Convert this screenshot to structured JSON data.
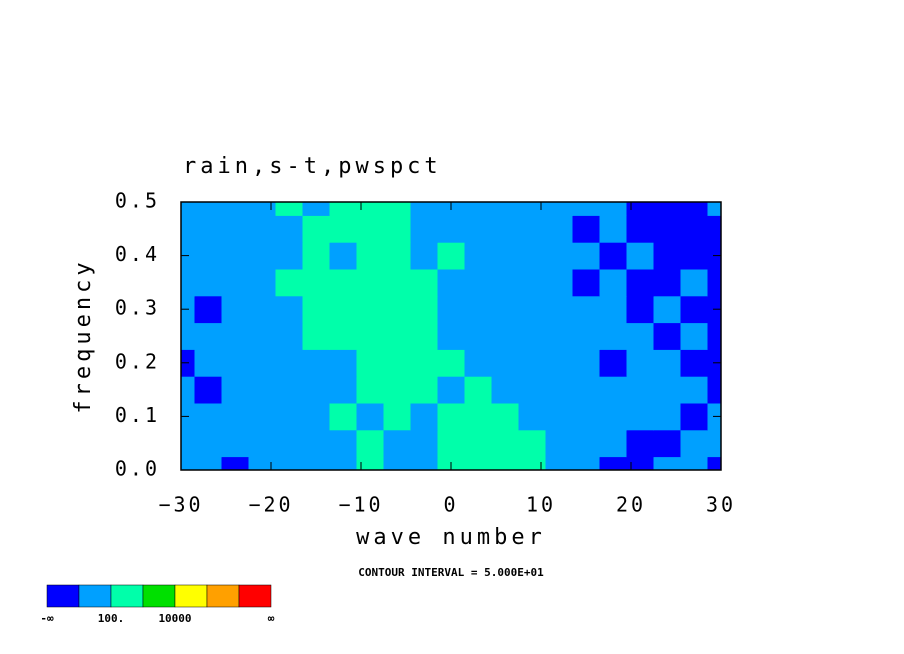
{
  "chart_data": {
    "type": "contour",
    "title": "rain,s-t,pwspct",
    "x_label": "wave number",
    "y_label": "frequency",
    "note": "CONTOUR INTERVAL = 5.000E+01",
    "xlim": [
      -30,
      30
    ],
    "ylim": [
      0,
      0.5
    ],
    "xticks": [
      {
        "value": -30,
        "label": "−30"
      },
      {
        "value": -20,
        "label": "−20"
      },
      {
        "value": -10,
        "label": "−10"
      },
      0,
      10,
      20,
      30
    ],
    "yticks": [
      {
        "value": 0,
        "label": "0.0"
      },
      0.1,
      0.2,
      0.3,
      0.4,
      0.5
    ],
    "x": [
      -30,
      -27,
      -24,
      -21,
      -18,
      -15,
      -12,
      -9,
      -6,
      -3,
      0,
      3,
      6,
      9,
      12,
      15,
      18,
      21,
      24,
      27,
      30
    ],
    "y": [
      0,
      0.05,
      0.1,
      0.15,
      0.2,
      0.25,
      0.3,
      0.35,
      0.4,
      0.45,
      0.5
    ],
    "z": [
      [
        70,
        70,
        30,
        70,
        70,
        70,
        70,
        200,
        70,
        70,
        200,
        200,
        200,
        200,
        70,
        70,
        30,
        30,
        70,
        70,
        30
      ],
      [
        70,
        70,
        70,
        70,
        70,
        70,
        70,
        200,
        70,
        70,
        200,
        200,
        200,
        200,
        70,
        70,
        70,
        30,
        30,
        70,
        70
      ],
      [
        70,
        70,
        70,
        70,
        70,
        70,
        200,
        70,
        200,
        70,
        200,
        200,
        200,
        70,
        70,
        70,
        70,
        70,
        70,
        30,
        70
      ],
      [
        70,
        30,
        70,
        70,
        70,
        70,
        70,
        200,
        200,
        200,
        70,
        200,
        70,
        70,
        70,
        70,
        70,
        70,
        70,
        70,
        30
      ],
      [
        30,
        70,
        70,
        70,
        70,
        70,
        70,
        200,
        200,
        200,
        200,
        70,
        70,
        70,
        70,
        70,
        30,
        70,
        70,
        30,
        30
      ],
      [
        70,
        70,
        70,
        70,
        70,
        200,
        200,
        200,
        200,
        200,
        70,
        70,
        70,
        70,
        70,
        70,
        70,
        70,
        30,
        70,
        30
      ],
      [
        70,
        30,
        70,
        70,
        70,
        200,
        200,
        200,
        200,
        200,
        70,
        70,
        70,
        70,
        70,
        70,
        70,
        30,
        70,
        30,
        30
      ],
      [
        70,
        70,
        70,
        70,
        200,
        200,
        200,
        200,
        200,
        200,
        70,
        70,
        70,
        70,
        70,
        30,
        70,
        30,
        30,
        70,
        30
      ],
      [
        70,
        70,
        70,
        70,
        70,
        200,
        70,
        200,
        200,
        70,
        200,
        70,
        70,
        70,
        70,
        70,
        30,
        70,
        30,
        30,
        30
      ],
      [
        70,
        70,
        70,
        70,
        70,
        200,
        200,
        200,
        200,
        70,
        70,
        70,
        70,
        70,
        70,
        30,
        70,
        30,
        30,
        30,
        30
      ],
      [
        70,
        70,
        70,
        70,
        200,
        70,
        200,
        200,
        200,
        70,
        70,
        70,
        70,
        70,
        70,
        70,
        70,
        30,
        30,
        30,
        70
      ]
    ],
    "levels": [
      50,
      {
        "value": 100,
        "label": "100."
      },
      1000,
      {
        "value": 10000,
        "label": "10000"
      },
      100000,
      1000000
    ],
    "colors": [
      "#0000ff",
      "#00a0ff",
      "#00ffaa",
      "#00e000",
      "#ffff00",
      "#ffa000",
      "#ff0000"
    ],
    "low_label": "-∞",
    "high_label": "∞"
  }
}
